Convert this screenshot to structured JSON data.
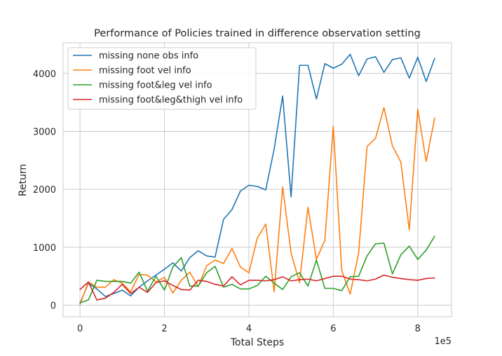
{
  "chart_data": {
    "type": "line",
    "title": "Performance of Policies trained in difference observation setting",
    "xlabel": "Total Steps",
    "ylabel": "Return",
    "x_scale_label": "1e5",
    "xlim": [
      -0.4,
      8.8
    ],
    "ylim": [
      -200,
      4530
    ],
    "x_ticks": [
      0,
      2,
      4,
      6,
      8
    ],
    "y_ticks": [
      0,
      1000,
      2000,
      3000,
      4000
    ],
    "grid": true,
    "legend_position": "upper-left",
    "x": [
      0,
      0.2,
      0.4,
      0.6,
      0.8,
      1.0,
      1.2,
      1.4,
      1.6,
      1.8,
      2.0,
      2.2,
      2.4,
      2.6,
      2.8,
      3.0,
      3.2,
      3.4,
      3.6,
      3.8,
      4.0,
      4.2,
      4.4,
      4.6,
      4.8,
      5.0,
      5.2,
      5.4,
      5.6,
      5.8,
      6.0,
      6.2,
      6.4,
      6.6,
      6.8,
      7.0,
      7.2,
      7.4,
      7.6,
      7.8,
      8.0,
      8.2,
      8.4
    ],
    "series": [
      {
        "name": "missing none obs info",
        "color": "#1f77b4",
        "values": [
          30,
          380,
          280,
          150,
          200,
          260,
          160,
          310,
          420,
          520,
          620,
          730,
          590,
          820,
          940,
          850,
          830,
          1480,
          1650,
          1970,
          2070,
          2050,
          1990,
          2700,
          3610,
          1870,
          4140,
          4140,
          3560,
          4170,
          4090,
          4160,
          4330,
          3960,
          4250,
          4290,
          4020,
          4240,
          4270,
          3920,
          4280,
          3860,
          4260
        ]
      },
      {
        "name": "missing foot vel info",
        "color": "#ff7f0e",
        "values": [
          10,
          400,
          310,
          310,
          440,
          380,
          230,
          530,
          520,
          400,
          480,
          210,
          430,
          570,
          320,
          680,
          780,
          720,
          980,
          660,
          560,
          1160,
          1400,
          230,
          2040,
          900,
          390,
          1690,
          790,
          1120,
          3090,
          600,
          190,
          900,
          2740,
          2880,
          3410,
          2750,
          2470,
          1300,
          3380,
          2480,
          3230
        ]
      },
      {
        "name": "missing foot&leg vel info",
        "color": "#2ca02c",
        "values": [
          40,
          90,
          430,
          410,
          410,
          410,
          380,
          570,
          240,
          500,
          260,
          660,
          820,
          330,
          330,
          560,
          670,
          310,
          360,
          280,
          280,
          340,
          500,
          380,
          270,
          490,
          560,
          330,
          780,
          290,
          290,
          250,
          490,
          500,
          850,
          1060,
          1070,
          540,
          870,
          1020,
          790,
          950,
          1190
        ]
      },
      {
        "name": "missing foot&leg&thigh vel info",
        "color": "#d62728",
        "values": [
          270,
          400,
          90,
          120,
          220,
          360,
          200,
          310,
          220,
          390,
          420,
          340,
          270,
          260,
          430,
          410,
          360,
          330,
          490,
          350,
          430,
          430,
          420,
          440,
          490,
          420,
          440,
          450,
          420,
          460,
          500,
          500,
          450,
          440,
          420,
          450,
          520,
          480,
          460,
          440,
          430,
          460,
          470
        ]
      }
    ]
  }
}
